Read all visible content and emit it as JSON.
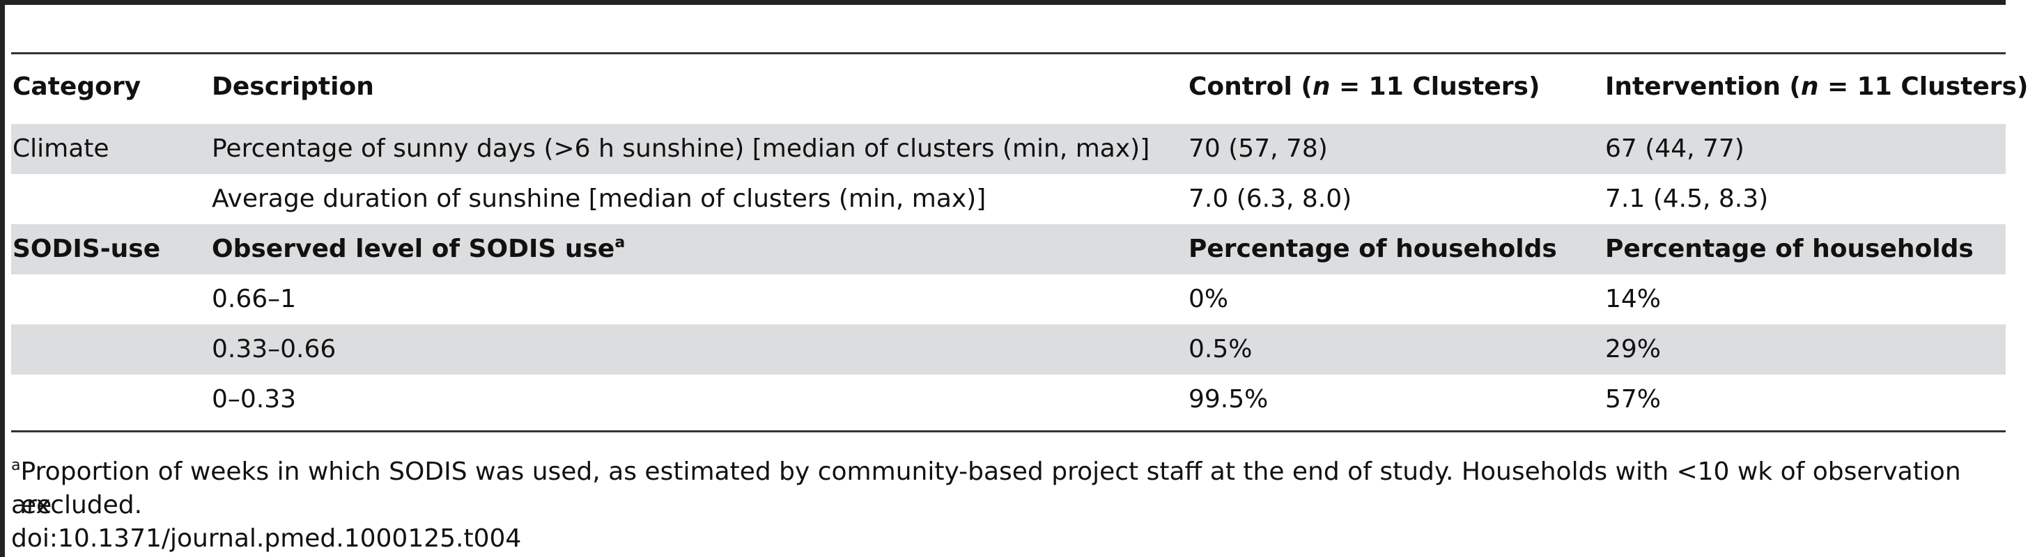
{
  "table": {
    "columns": [
      "Category",
      "Description",
      "Control (",
      "n",
      " = 11 Clusters)",
      "Intervention (",
      "n",
      " = 11 Clusters)"
    ],
    "header": {
      "category": "Category",
      "description": "Description",
      "control_pre": "Control (",
      "control_n": "n",
      "control_post": " = 11 Clusters)",
      "intervention_pre": "Intervention (",
      "intervention_n": "n",
      "intervention_post": " = 11 Clusters)"
    },
    "rows": [
      {
        "category": "Climate",
        "description": "Percentage of sunny days (>6 h sunshine) [median of clusters (min, max)]",
        "control": "70 (57, 78)",
        "intervention": "67 (44, 77)"
      },
      {
        "category": "",
        "description": "Average duration of sunshine [median of clusters (min, max)]",
        "control": "7.0 (6.3, 8.0)",
        "intervention": "7.1 (4.5, 8.3)"
      },
      {
        "category": "SODIS-use",
        "description": "Observed level of SODIS use",
        "description_sup": "a",
        "control": "Percentage of households",
        "intervention": "Percentage of households"
      },
      {
        "category": "",
        "description": "0.66–1",
        "control": "0%",
        "intervention": "14%"
      },
      {
        "category": "",
        "description": "0.33–0.66",
        "control": "0.5%",
        "intervention": "29%"
      },
      {
        "category": "",
        "description": "0–0.33",
        "control": "99.5%",
        "intervention": "57%"
      }
    ]
  },
  "footnote": {
    "marker": "a",
    "line1": "Proportion of weeks in which SODIS was used, as estimated by community-based project staff at the end of study. Households with <10 wk of observation are",
    "line2": "excluded."
  },
  "doi": "doi:10.1371/journal.pmed.1000125.t004"
}
